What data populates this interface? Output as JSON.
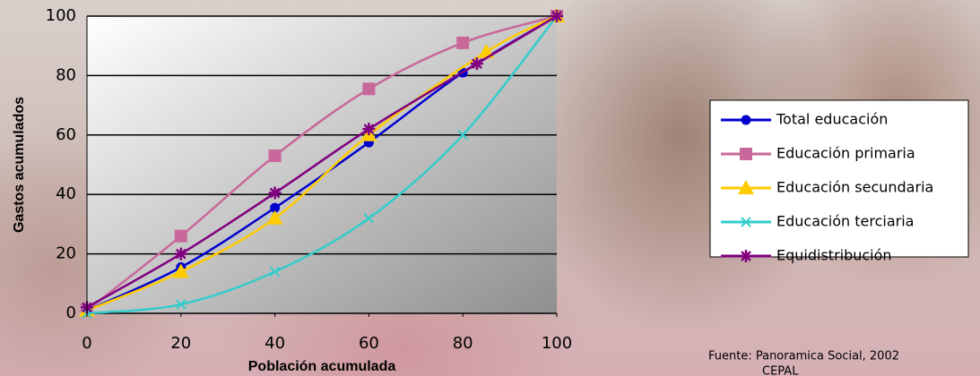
{
  "chart_data": {
    "type": "line",
    "x_label": "Población acumulada",
    "y_label": "Gastos acumulados",
    "xlim": [
      0,
      100
    ],
    "xticks": [
      0,
      20,
      40,
      60,
      80,
      100
    ],
    "ylim": [
      0,
      100
    ],
    "yticks": [
      0,
      20,
      40,
      60,
      80,
      100
    ],
    "grid": true,
    "smooth": true,
    "legend": "right",
    "series": [
      {
        "name": "Total educación",
        "color": "#0000cc",
        "marker": "circle",
        "x": [
          0,
          20,
          40,
          60,
          80,
          100
        ],
        "values": [
          1,
          15.5,
          35.5,
          57.5,
          81,
          100
        ]
      },
      {
        "name": "Educación primaria",
        "color": "#c8689a",
        "marker": "square",
        "x": [
          0,
          20,
          40,
          60,
          80,
          100
        ],
        "values": [
          1,
          26,
          53,
          75.5,
          91,
          100
        ]
      },
      {
        "name": "Educación secundaria",
        "color": "#ffcc00",
        "marker": "triangle",
        "x": [
          0,
          20,
          40,
          60,
          85,
          100
        ],
        "values": [
          1,
          14,
          32,
          60,
          88,
          100
        ]
      },
      {
        "name": "Educación terciaria",
        "color": "#33cccc",
        "marker": "x",
        "x": [
          0,
          20,
          40,
          60,
          80,
          100
        ],
        "values": [
          0,
          3,
          14,
          32,
          60,
          100
        ]
      },
      {
        "name": "Equidistribución",
        "color": "#800080",
        "marker": "star",
        "x": [
          0,
          20,
          40,
          60,
          83,
          100
        ],
        "values": [
          2,
          20,
          40.5,
          62,
          84,
          100
        ]
      }
    ]
  },
  "source_lines": [
    "Fuente: Panoramica Social, 2002",
    "CEPAL"
  ]
}
